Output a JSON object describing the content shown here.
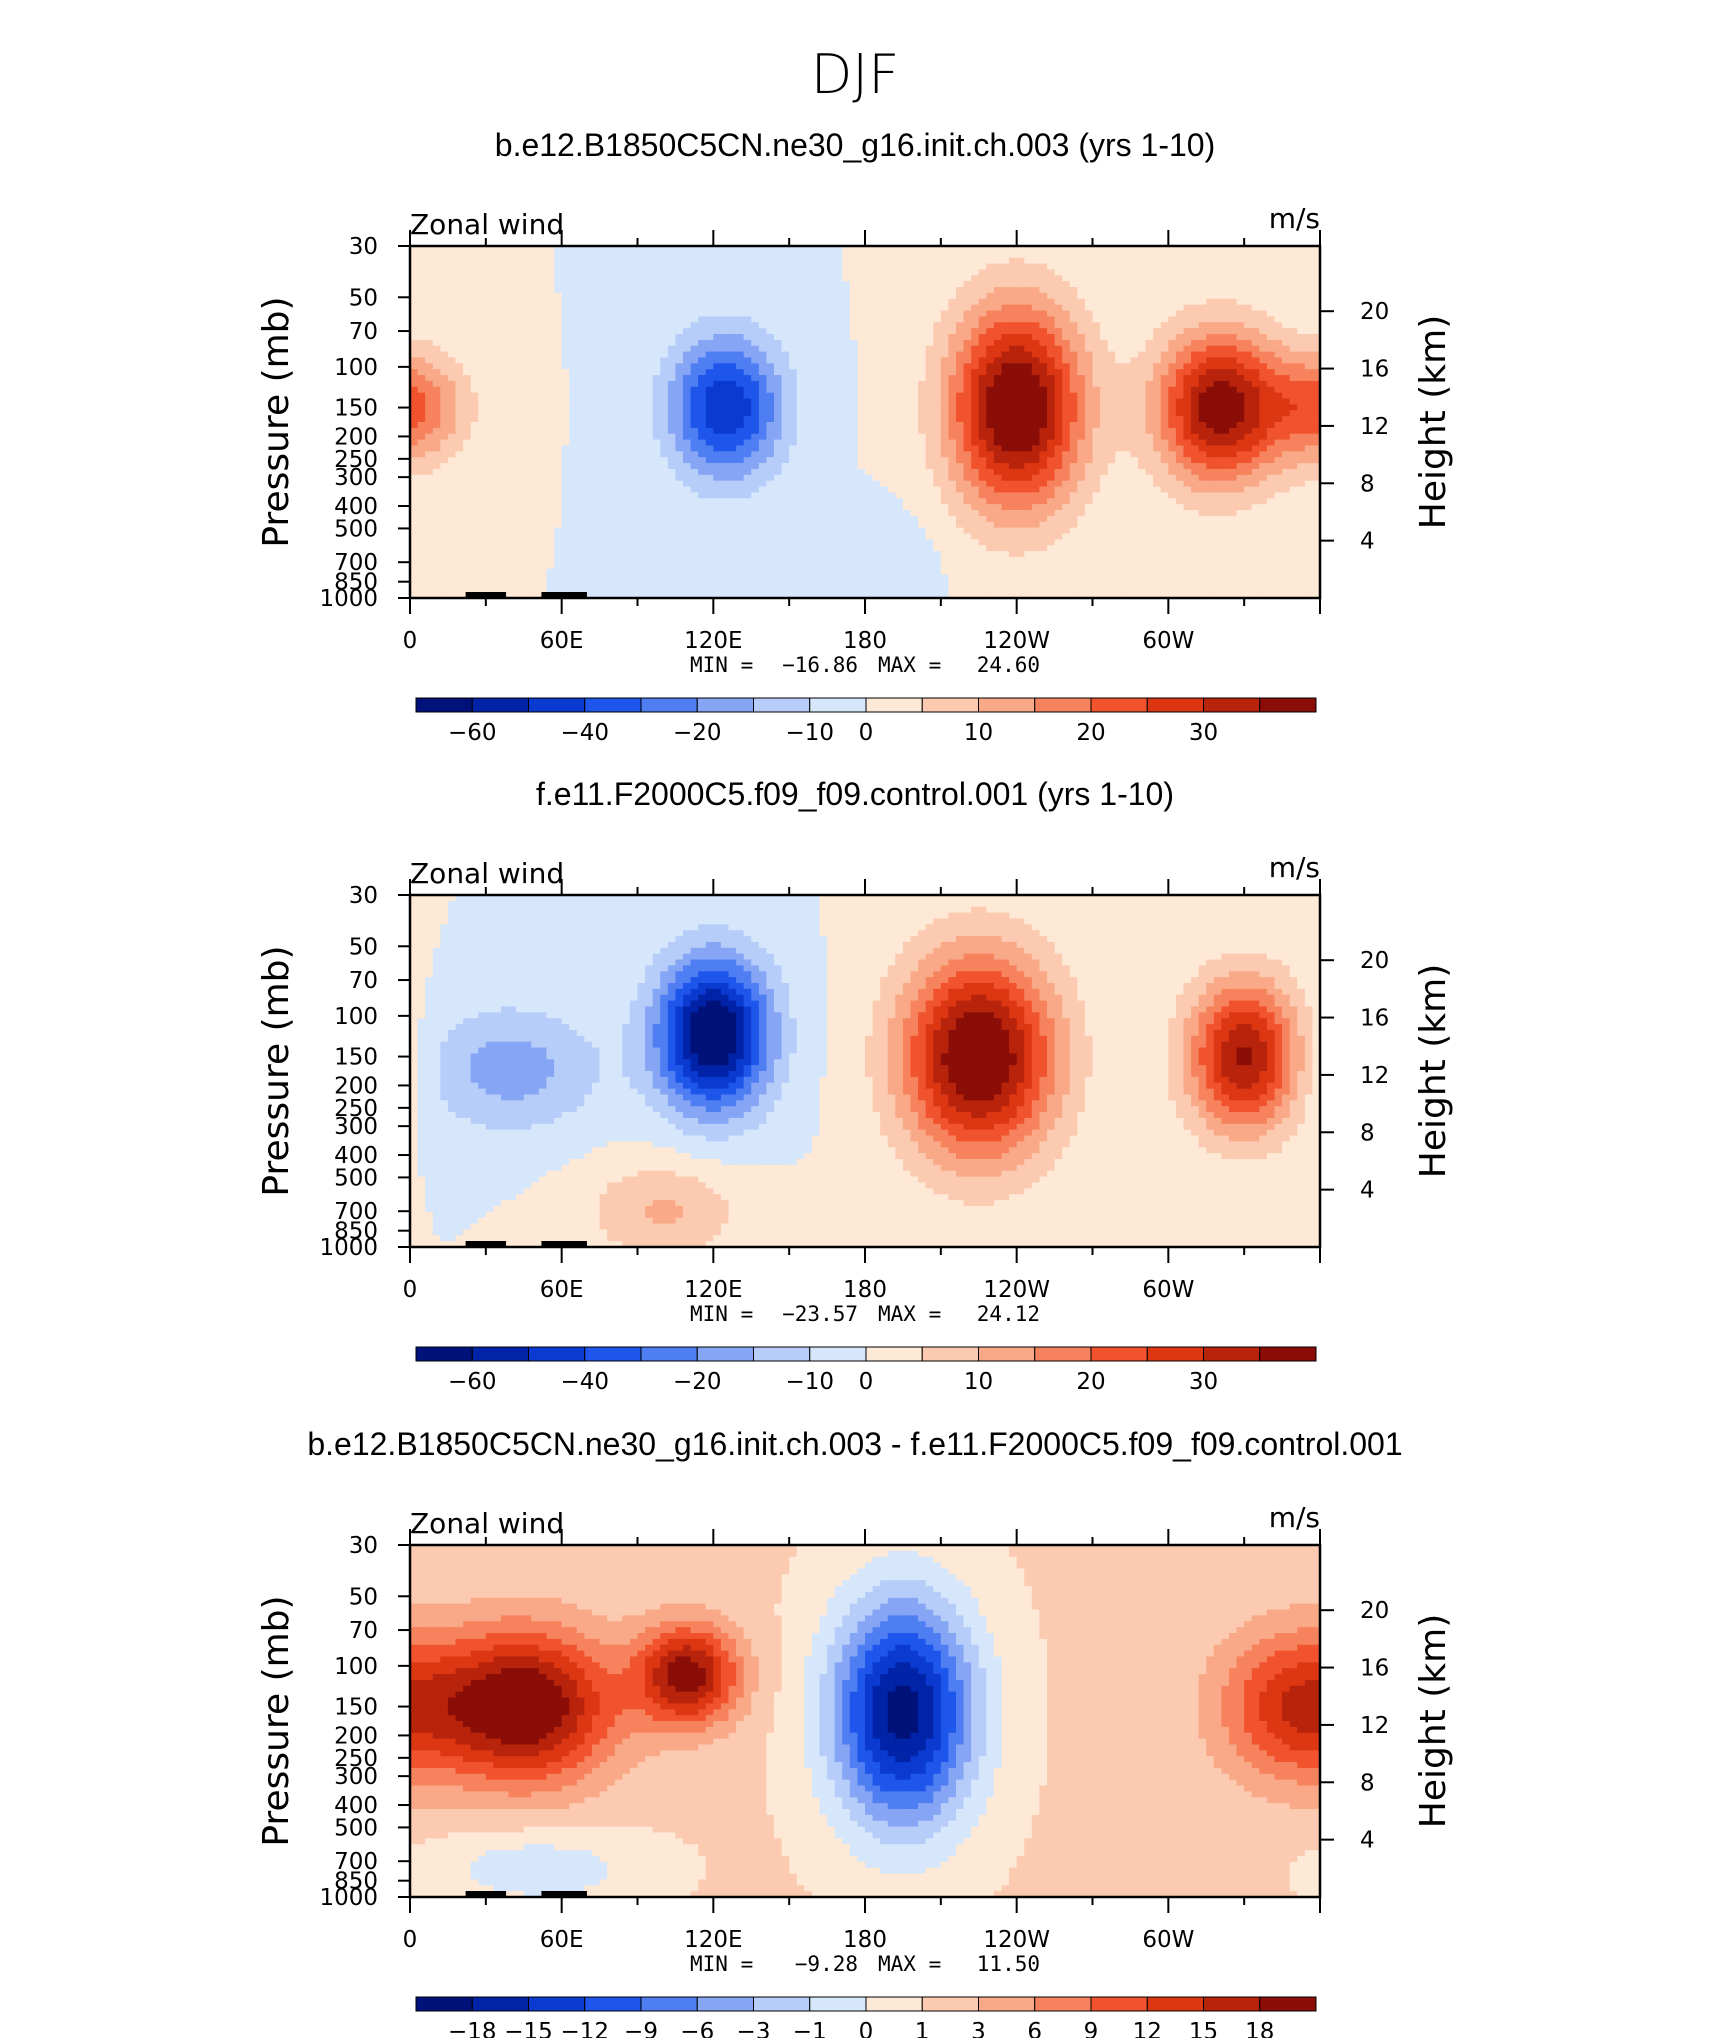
{
  "figure_title": "DJF",
  "chart_data": [
    {
      "type": "heatmap",
      "title": "b.e12.B1850C5CN.ne30_g16.init.ch.003 (yrs 1-10)",
      "left_label": "Zonal wind",
      "right_label": "m/s",
      "xlabel": "",
      "ylabel": "Pressure (mb)",
      "ylabel_right": "Height (km)",
      "xticks": [
        "0",
        "60E",
        "120E",
        "180",
        "120W",
        "60W"
      ],
      "yticks": [
        "30",
        "50",
        "70",
        "100",
        "150",
        "200",
        "250",
        "300",
        "400",
        "500",
        "700",
        "850",
        "1000"
      ],
      "yticks_right": [
        "20",
        "16",
        "12",
        "8",
        "4"
      ],
      "ylim": [
        1000,
        30
      ],
      "y_scale": "log",
      "xlim": [
        0,
        360
      ],
      "stat_min_label": "MIN =",
      "stat_min": "−16.86",
      "stat_max_label": "MAX =",
      "stat_max": "24.60",
      "colorbar_labels": [
        "−60",
        "−40",
        "−20",
        "−10",
        "0",
        "10",
        "20",
        "30"
      ],
      "colorbar_colors": [
        "#00127a",
        "#0023a8",
        "#0a3ad0",
        "#1e56ec",
        "#4f7ef2",
        "#86a6f5",
        "#b7cdf9",
        "#d7e7fb",
        "#fde9d6",
        "#fbcab0",
        "#f9a987",
        "#f6835d",
        "#f0532e",
        "#dc3612",
        "#b8230c",
        "#8a0e07"
      ],
      "fields": [
        {
          "lon": 0,
          "p": 150,
          "sx": 22,
          "sy": 0.22,
          "v": 12
        },
        {
          "lon": 125,
          "p": 150,
          "sx": 22,
          "sy": 0.28,
          "v": -16.86
        },
        {
          "lon": 240,
          "p": 150,
          "sx": 26,
          "sy": 0.4,
          "v": 24.6
        },
        {
          "lon": 320,
          "p": 150,
          "sx": 24,
          "sy": 0.3,
          "v": 22
        },
        {
          "lon": 190,
          "p": 700,
          "sx": 18,
          "sy": 0.2,
          "v": -2
        }
      ]
    },
    {
      "type": "heatmap",
      "title": "f.e11.F2000C5.f09_f09.control.001 (yrs 1-10)",
      "left_label": "Zonal wind",
      "right_label": "m/s",
      "xlabel": "",
      "ylabel": "Pressure (mb)",
      "ylabel_right": "Height (km)",
      "xticks": [
        "0",
        "60E",
        "120E",
        "180",
        "120W",
        "60W"
      ],
      "yticks": [
        "30",
        "50",
        "70",
        "100",
        "150",
        "200",
        "250",
        "300",
        "400",
        "500",
        "700",
        "850",
        "1000"
      ],
      "yticks_right": [
        "20",
        "16",
        "12",
        "8",
        "4"
      ],
      "ylim": [
        1000,
        30
      ],
      "y_scale": "log",
      "xlim": [
        0,
        360
      ],
      "stat_min_label": "MIN =",
      "stat_min": "−23.57",
      "stat_max_label": "MAX =",
      "stat_max": "24.12",
      "colorbar_labels": [
        "−60",
        "−40",
        "−20",
        "−10",
        "0",
        "10",
        "20",
        "30"
      ],
      "colorbar_colors": [
        "#00127a",
        "#0023a8",
        "#0a3ad0",
        "#1e56ec",
        "#4f7ef2",
        "#86a6f5",
        "#b7cdf9",
        "#d7e7fb",
        "#fde9d6",
        "#fbcab0",
        "#f9a987",
        "#f6835d",
        "#f0532e",
        "#dc3612",
        "#b8230c",
        "#8a0e07"
      ],
      "fields": [
        {
          "lon": 120,
          "p": 120,
          "sx": 22,
          "sy": 0.3,
          "v": -23.57
        },
        {
          "lon": 40,
          "p": 170,
          "sx": 35,
          "sy": 0.25,
          "v": -7
        },
        {
          "lon": 225,
          "p": 150,
          "sx": 30,
          "sy": 0.4,
          "v": 24.12
        },
        {
          "lon": 330,
          "p": 150,
          "sx": 22,
          "sy": 0.3,
          "v": 20
        },
        {
          "lon": 100,
          "p": 700,
          "sx": 30,
          "sy": 0.2,
          "v": 6
        }
      ]
    },
    {
      "type": "heatmap",
      "title": "b.e12.B1850C5CN.ne30_g16.init.ch.003 - f.e11.F2000C5.f09_f09.control.001",
      "left_label": "Zonal wind",
      "right_label": "m/s",
      "xlabel": "",
      "ylabel": "Pressure (mb)",
      "ylabel_right": "Height (km)",
      "xticks": [
        "0",
        "60E",
        "120E",
        "180",
        "120W",
        "60W"
      ],
      "yticks": [
        "30",
        "50",
        "70",
        "100",
        "150",
        "200",
        "250",
        "300",
        "400",
        "500",
        "700",
        "850",
        "1000"
      ],
      "yticks_right": [
        "20",
        "16",
        "12",
        "8",
        "4"
      ],
      "ylim": [
        1000,
        30
      ],
      "y_scale": "log",
      "xlim": [
        0,
        360
      ],
      "stat_min_label": "MIN =",
      "stat_min": "−9.28",
      "stat_max_label": "MAX =",
      "stat_max": "11.50",
      "colorbar_labels": [
        "−18",
        "−15",
        "−12",
        "−9",
        "−6",
        "−3",
        "−1",
        "0",
        "1",
        "3",
        "6",
        "9",
        "12",
        "15",
        "18"
      ],
      "colorbar_colors": [
        "#00127a",
        "#0023a8",
        "#0a3ad0",
        "#1e56ec",
        "#4f7ef2",
        "#86a6f5",
        "#b7cdf9",
        "#d7e7fb",
        "#fde9d6",
        "#fbcab0",
        "#f9a987",
        "#f6835d",
        "#f0532e",
        "#dc3612",
        "#b8230c",
        "#8a0e07"
      ],
      "fields": [
        {
          "lon": 195,
          "p": 160,
          "sx": 28,
          "sy": 0.45,
          "v": -9.28
        },
        {
          "lon": 45,
          "p": 150,
          "sx": 35,
          "sy": 0.3,
          "v": 8
        },
        {
          "lon": 110,
          "p": 110,
          "sx": 20,
          "sy": 0.2,
          "v": 7
        },
        {
          "lon": 350,
          "p": 150,
          "sx": 30,
          "sy": 0.3,
          "v": 5
        },
        {
          "lon": 50,
          "p": 750,
          "sx": 40,
          "sy": 0.15,
          "v": -2
        }
      ]
    }
  ]
}
